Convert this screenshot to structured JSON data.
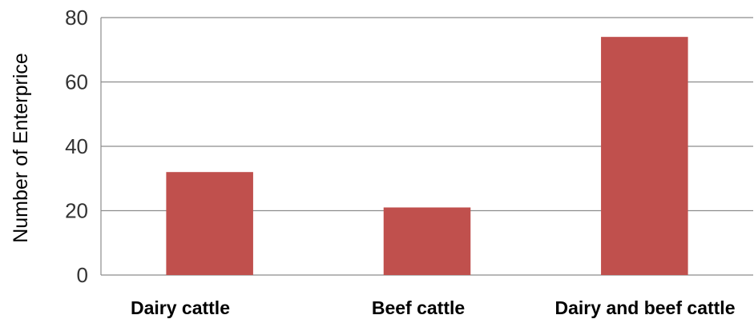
{
  "chart_data": {
    "type": "bar",
    "categories": [
      "Dairy cattle",
      "Beef cattle",
      "Dairy and beef cattle"
    ],
    "values": [
      32,
      21,
      74
    ],
    "ylabel": "Number of Enterprice",
    "ylim": [
      0,
      80
    ],
    "yticks": [
      0,
      20,
      40,
      60,
      80
    ],
    "grid": true,
    "bar_color": "#c0504d"
  }
}
